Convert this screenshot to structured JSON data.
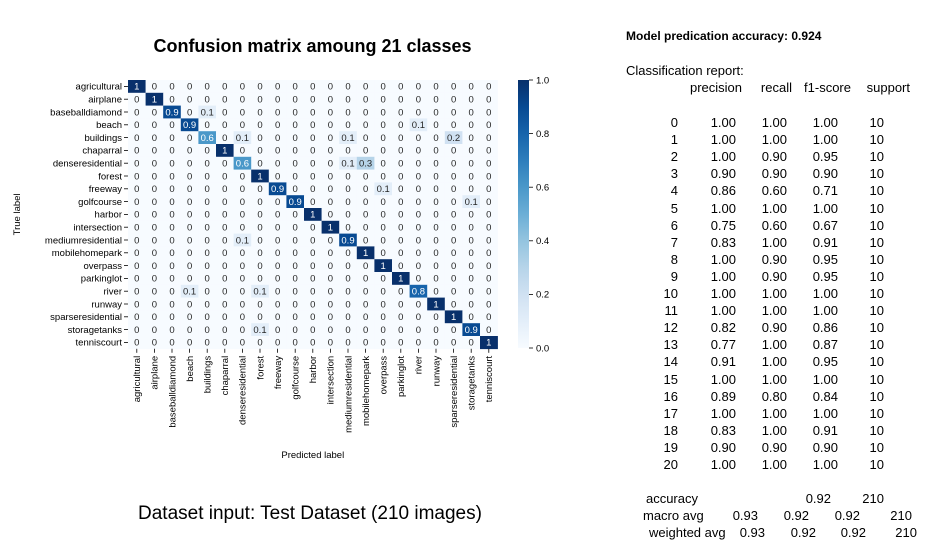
{
  "chart_data": {
    "type": "heatmap",
    "title": "Confusion matrix amoung 21 classes",
    "xlabel": "Predicted label",
    "ylabel": "True label",
    "labels": [
      "agricultural",
      "airplane",
      "baseballdiamond",
      "beach",
      "buildings",
      "chaparral",
      "denseresidential",
      "forest",
      "freeway",
      "golfcourse",
      "harbor",
      "intersection",
      "mediumresidential",
      "mobilehomepark",
      "overpass",
      "parkinglot",
      "river",
      "runway",
      "sparseresidential",
      "storagetanks",
      "tenniscourt"
    ],
    "matrix": [
      [
        1,
        0,
        0,
        0,
        0,
        0,
        0,
        0,
        0,
        0,
        0,
        0,
        0,
        0,
        0,
        0,
        0,
        0,
        0,
        0,
        0
      ],
      [
        0,
        1,
        0,
        0,
        0,
        0,
        0,
        0,
        0,
        0,
        0,
        0,
        0,
        0,
        0,
        0,
        0,
        0,
        0,
        0,
        0
      ],
      [
        0,
        0,
        0.9,
        0,
        0.1,
        0,
        0,
        0,
        0,
        0,
        0,
        0,
        0,
        0,
        0,
        0,
        0,
        0,
        0,
        0,
        0
      ],
      [
        0,
        0,
        0,
        0.9,
        0,
        0,
        0,
        0,
        0,
        0,
        0,
        0,
        0,
        0,
        0,
        0,
        0.1,
        0,
        0,
        0,
        0
      ],
      [
        0,
        0,
        0,
        0,
        0.6,
        0,
        0.1,
        0,
        0,
        0,
        0,
        0,
        0.1,
        0,
        0,
        0,
        0,
        0,
        0.2,
        0,
        0
      ],
      [
        0,
        0,
        0,
        0,
        0,
        1,
        0,
        0,
        0,
        0,
        0,
        0,
        0,
        0,
        0,
        0,
        0,
        0,
        0,
        0,
        0
      ],
      [
        0,
        0,
        0,
        0,
        0,
        0,
        0.6,
        0,
        0,
        0,
        0,
        0,
        0.1,
        0.3,
        0,
        0,
        0,
        0,
        0,
        0,
        0
      ],
      [
        0,
        0,
        0,
        0,
        0,
        0,
        0,
        1,
        0,
        0,
        0,
        0,
        0,
        0,
        0,
        0,
        0,
        0,
        0,
        0,
        0
      ],
      [
        0,
        0,
        0,
        0,
        0,
        0,
        0,
        0,
        0.9,
        0,
        0,
        0,
        0,
        0,
        0.1,
        0,
        0,
        0,
        0,
        0,
        0
      ],
      [
        0,
        0,
        0,
        0,
        0,
        0,
        0,
        0,
        0,
        0.9,
        0,
        0,
        0,
        0,
        0,
        0,
        0,
        0,
        0,
        0.1,
        0
      ],
      [
        0,
        0,
        0,
        0,
        0,
        0,
        0,
        0,
        0,
        0,
        1,
        0,
        0,
        0,
        0,
        0,
        0,
        0,
        0,
        0,
        0
      ],
      [
        0,
        0,
        0,
        0,
        0,
        0,
        0,
        0,
        0,
        0,
        0,
        1,
        0,
        0,
        0,
        0,
        0,
        0,
        0,
        0,
        0
      ],
      [
        0,
        0,
        0,
        0,
        0,
        0,
        0.1,
        0,
        0,
        0,
        0,
        0,
        0.9,
        0,
        0,
        0,
        0,
        0,
        0,
        0,
        0
      ],
      [
        0,
        0,
        0,
        0,
        0,
        0,
        0,
        0,
        0,
        0,
        0,
        0,
        0,
        1,
        0,
        0,
        0,
        0,
        0,
        0,
        0
      ],
      [
        0,
        0,
        0,
        0,
        0,
        0,
        0,
        0,
        0,
        0,
        0,
        0,
        0,
        0,
        1,
        0,
        0,
        0,
        0,
        0,
        0
      ],
      [
        0,
        0,
        0,
        0,
        0,
        0,
        0,
        0,
        0,
        0,
        0,
        0,
        0,
        0,
        0,
        1,
        0,
        0,
        0,
        0,
        0
      ],
      [
        0,
        0,
        0,
        0.1,
        0,
        0,
        0,
        0.1,
        0,
        0,
        0,
        0,
        0,
        0,
        0,
        0,
        0.8,
        0,
        0,
        0,
        0
      ],
      [
        0,
        0,
        0,
        0,
        0,
        0,
        0,
        0,
        0,
        0,
        0,
        0,
        0,
        0,
        0,
        0,
        0,
        1,
        0,
        0,
        0
      ],
      [
        0,
        0,
        0,
        0,
        0,
        0,
        0,
        0,
        0,
        0,
        0,
        0,
        0,
        0,
        0,
        0,
        0,
        0,
        1,
        0,
        0
      ],
      [
        0,
        0,
        0,
        0,
        0,
        0,
        0,
        0.1,
        0,
        0,
        0,
        0,
        0,
        0,
        0,
        0,
        0,
        0,
        0,
        0.9,
        0
      ],
      [
        0,
        0,
        0,
        0,
        0,
        0,
        0,
        0,
        0,
        0,
        0,
        0,
        0,
        0,
        0,
        0,
        0,
        0,
        0,
        0,
        1
      ]
    ],
    "colorbar_ticks": [
      "1.0",
      "0.8",
      "0.6",
      "0.4",
      "0.2",
      "0.0"
    ],
    "colormap": "Blues",
    "vmin": 0,
    "vmax": 1
  },
  "caption": "Dataset input: Test Dataset (210 images)",
  "accuracy_line": "Model predication accuracy: 0.924",
  "report_label": "Classification report:",
  "report_headers": [
    "precision",
    "recall",
    "f1-score",
    "support"
  ],
  "report_rows": [
    [
      "0",
      "1.00",
      "1.00",
      "1.00",
      "10"
    ],
    [
      "1",
      "1.00",
      "1.00",
      "1.00",
      "10"
    ],
    [
      "2",
      "1.00",
      "0.90",
      "0.95",
      "10"
    ],
    [
      "3",
      "0.90",
      "0.90",
      "0.90",
      "10"
    ],
    [
      "4",
      "0.86",
      "0.60",
      "0.71",
      "10"
    ],
    [
      "5",
      "1.00",
      "1.00",
      "1.00",
      "10"
    ],
    [
      "6",
      "0.75",
      "0.60",
      "0.67",
      "10"
    ],
    [
      "7",
      "0.83",
      "1.00",
      "0.91",
      "10"
    ],
    [
      "8",
      "1.00",
      "0.90",
      "0.95",
      "10"
    ],
    [
      "9",
      "1.00",
      "0.90",
      "0.95",
      "10"
    ],
    [
      "10",
      "1.00",
      "1.00",
      "1.00",
      "10"
    ],
    [
      "11",
      "1.00",
      "1.00",
      "1.00",
      "10"
    ],
    [
      "12",
      "0.82",
      "0.90",
      "0.86",
      "10"
    ],
    [
      "13",
      "0.77",
      "1.00",
      "0.87",
      "10"
    ],
    [
      "14",
      "0.91",
      "1.00",
      "0.95",
      "10"
    ],
    [
      "15",
      "1.00",
      "1.00",
      "1.00",
      "10"
    ],
    [
      "16",
      "0.89",
      "0.80",
      "0.84",
      "10"
    ],
    [
      "17",
      "1.00",
      "1.00",
      "1.00",
      "10"
    ],
    [
      "18",
      "0.83",
      "1.00",
      "0.91",
      "10"
    ],
    [
      "19",
      "0.90",
      "0.90",
      "0.90",
      "10"
    ],
    [
      "20",
      "1.00",
      "1.00",
      "1.00",
      "10"
    ]
  ],
  "report_summary": [
    [
      "accuracy",
      "",
      "",
      "0.92",
      "210"
    ],
    [
      "macro avg",
      "0.93",
      "0.92",
      "0.92",
      "210"
    ],
    [
      "weighted avg",
      "0.93",
      "0.92",
      "0.92",
      "210"
    ]
  ]
}
